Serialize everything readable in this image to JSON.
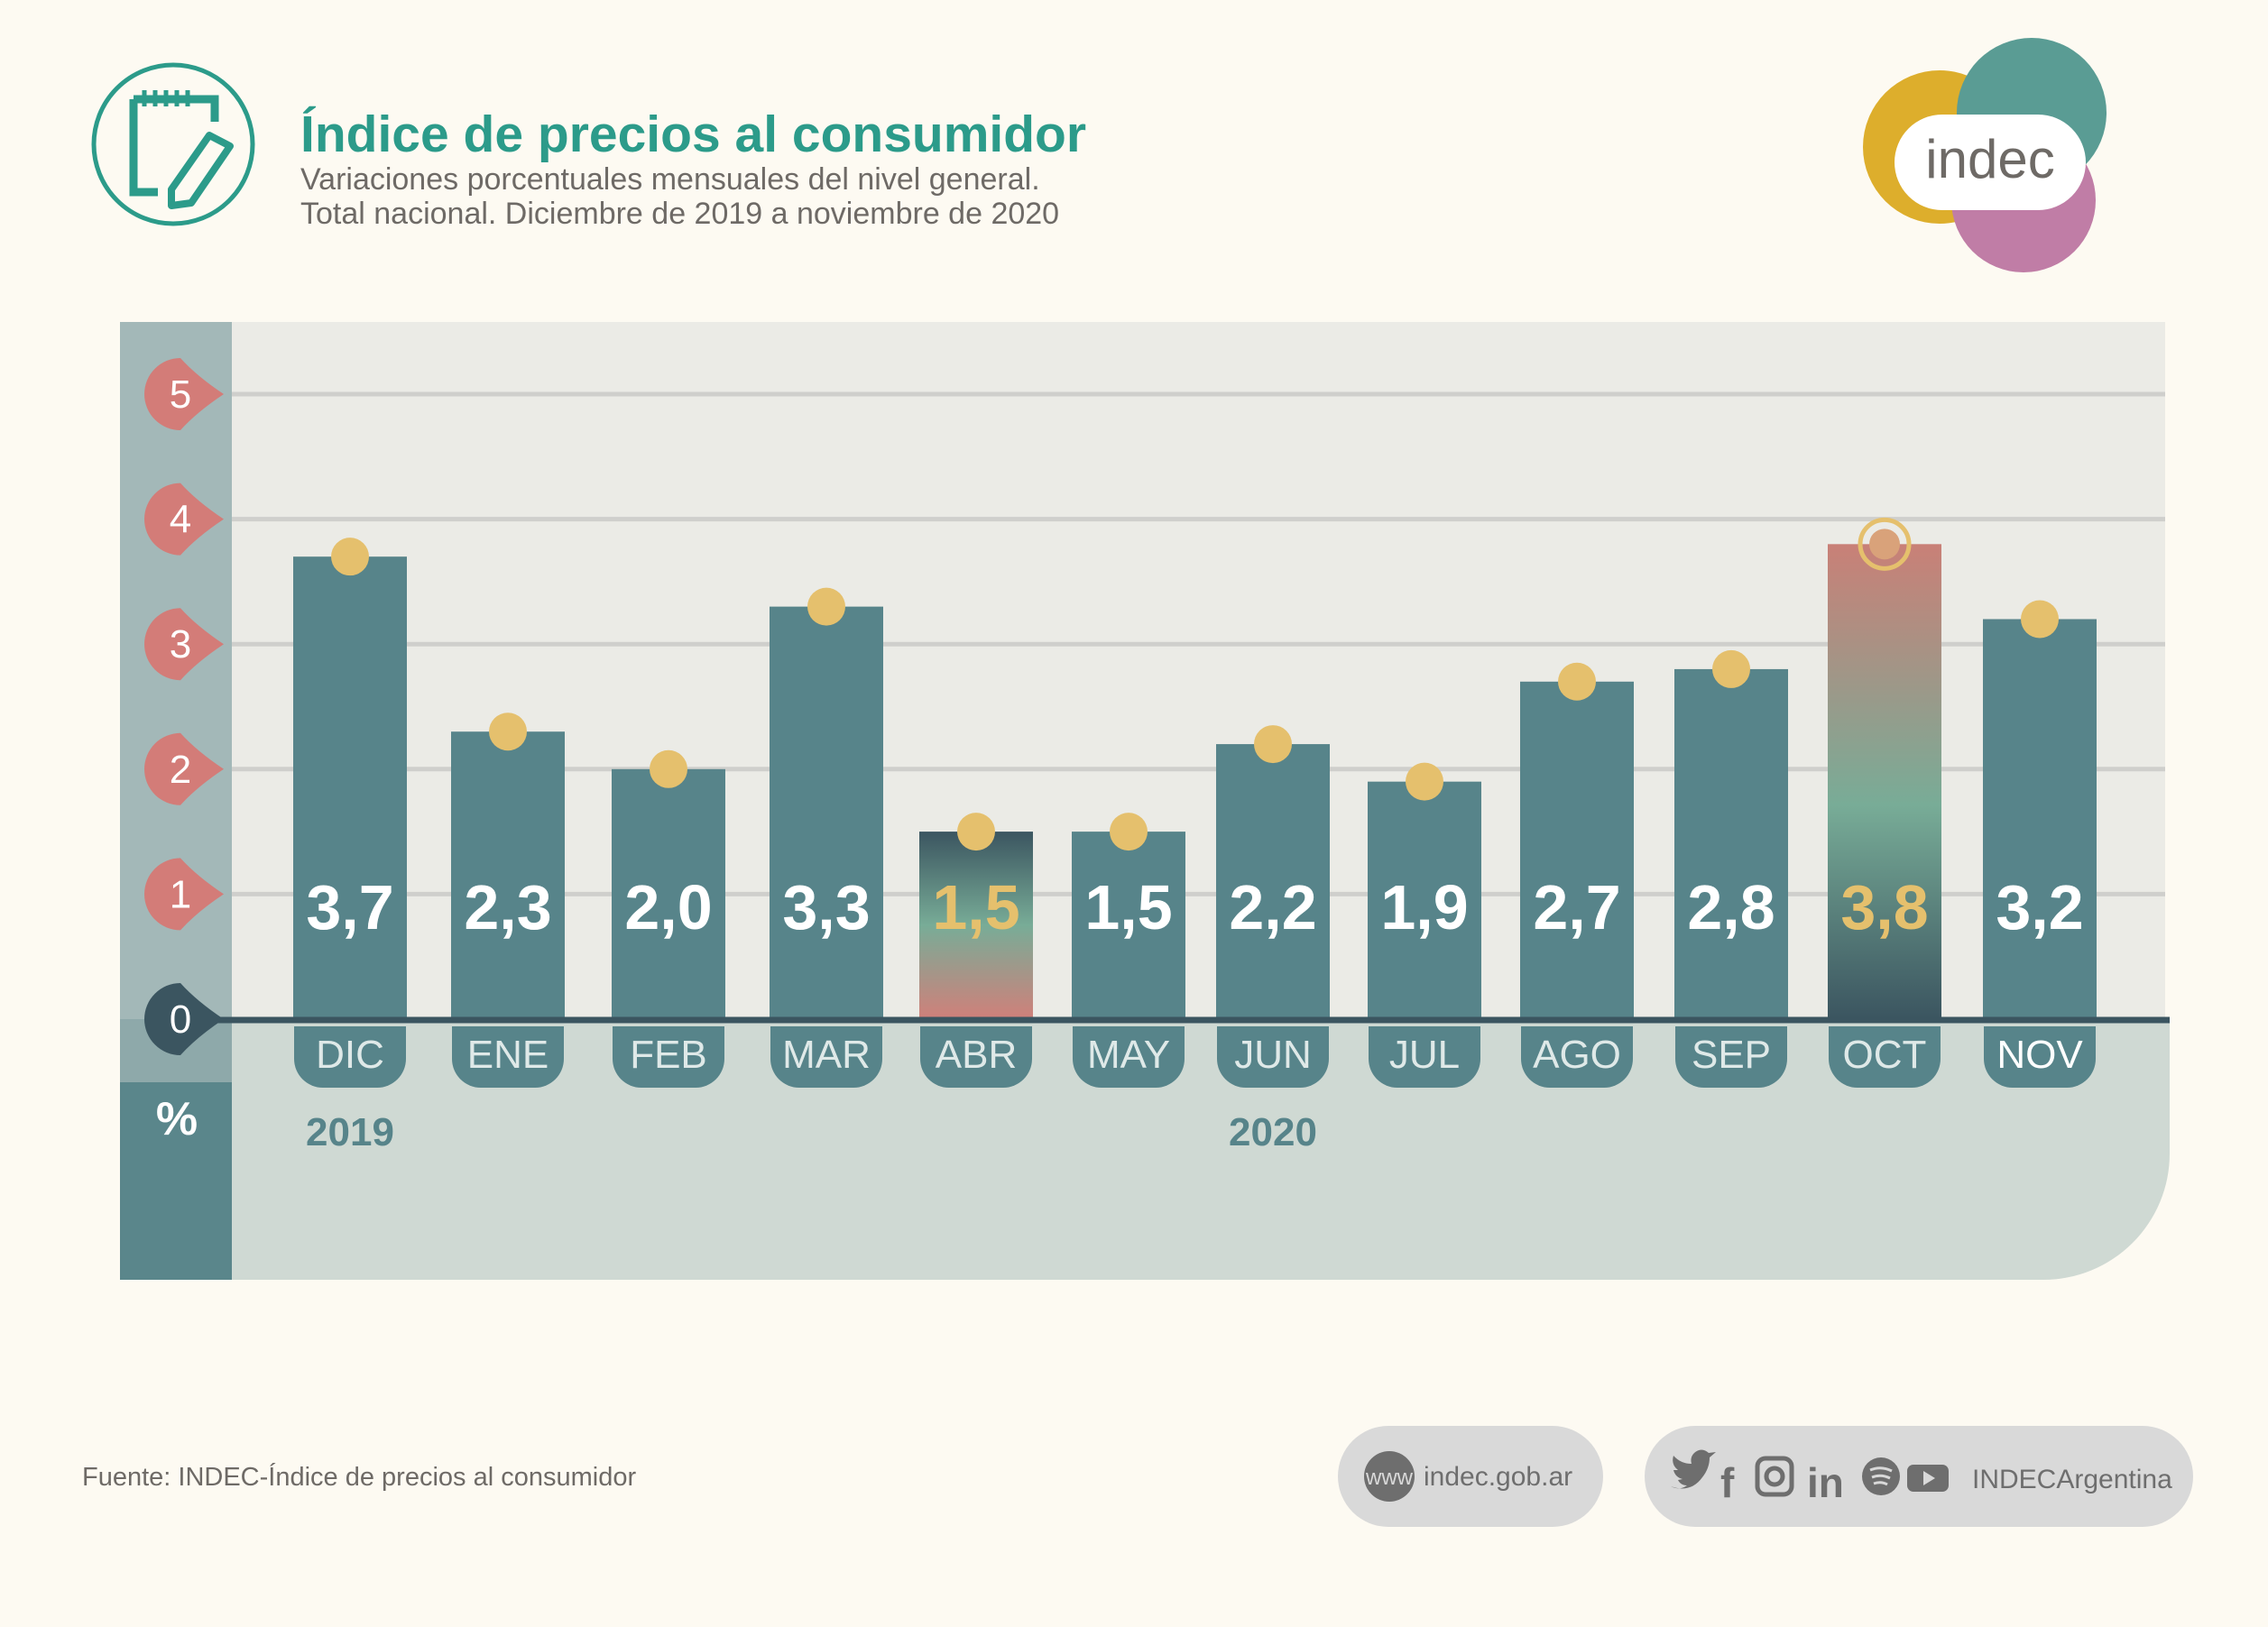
{
  "header": {
    "title": "Índice de precios al consumidor",
    "subtitle_line1": "Variaciones porcentuales mensuales del nivel general.",
    "subtitle_line2": "Total nacional. Diciembre de 2019 a noviembre de 2020",
    "icon": "notepad-pencil-icon",
    "logo_text": "indec"
  },
  "colors": {
    "background": "#fdfaf2",
    "title": "#2c9b8a",
    "bar": "#57848a",
    "dot": "#e5c06d",
    "tick_marker": "#d37c78",
    "zero_marker": "#3b5560",
    "highlight_label": "#e5c06d",
    "logo_yellow": "#ddae2c",
    "logo_teal": "#5a9c94",
    "logo_pink": "#c07da6"
  },
  "chart_data": {
    "type": "bar",
    "title": "Índice de precios al consumidor",
    "ylabel": "%",
    "ylim": [
      0,
      5
    ],
    "yticks": [
      "0",
      "1",
      "2",
      "3",
      "4",
      "5"
    ],
    "grid": true,
    "categories": [
      "DIC",
      "ENE",
      "FEB",
      "MAR",
      "ABR",
      "MAY",
      "JUN",
      "JUL",
      "AGO",
      "SEP",
      "OCT",
      "NOV"
    ],
    "values": [
      3.7,
      2.3,
      2.0,
      3.3,
      1.5,
      1.5,
      2.2,
      1.9,
      2.7,
      2.8,
      3.8,
      3.2
    ],
    "labels": [
      "3,7",
      "2,3",
      "2,0",
      "3,3",
      "1,5",
      "1,5",
      "2,2",
      "1,9",
      "2,7",
      "2,8",
      "3,8",
      "3,2"
    ],
    "highlighted": [
      "ABR",
      "OCT"
    ],
    "year_labels": [
      {
        "year": "2019",
        "at": "DIC"
      },
      {
        "year": "2020",
        "at": "JUN"
      }
    ]
  },
  "footer": {
    "source": "Fuente: INDEC-Índice de precios al consumidor",
    "web_badge": "www",
    "website": "indec.gob.ar",
    "social_icons": [
      "twitter-icon",
      "facebook-icon",
      "instagram-icon",
      "linkedin-icon",
      "spotify-icon",
      "youtube-icon"
    ],
    "social_handle": "INDECArgentina"
  }
}
